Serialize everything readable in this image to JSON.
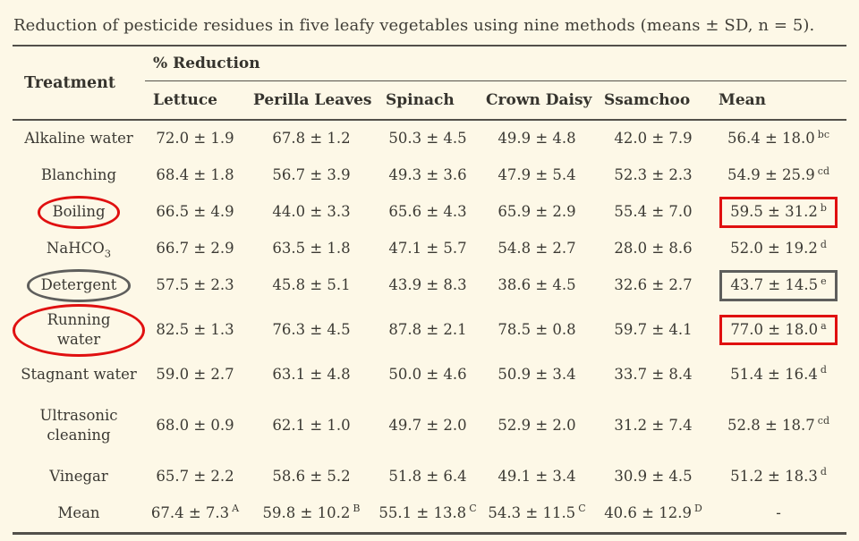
{
  "page": {
    "background_color": "#fdf8e7",
    "text_color": "#3b3933",
    "rule_color": "#52504a"
  },
  "title": "Reduction of pesticide residues in five leafy vegetables using nine methods (means ± SD, n = 5).",
  "annotation_colors": {
    "red": "#e01010",
    "gray": "#5e5e5c"
  },
  "table": {
    "treatment_header": "Treatment",
    "group_header": "% Reduction",
    "columns": [
      "Lettuce",
      "Perilla Leaves",
      "Spinach",
      "Crown Daisy",
      "Ssamchoo",
      "Mean"
    ],
    "rows": [
      {
        "treatment": "Alkaline water",
        "cells": [
          {
            "v": "72.0 ± 1.9"
          },
          {
            "v": "67.8 ± 1.2"
          },
          {
            "v": "50.3 ± 4.5"
          },
          {
            "v": "49.9 ± 4.8"
          },
          {
            "v": "42.0 ± 7.9"
          },
          {
            "v": "56.4 ± 18.0",
            "sup": "bc"
          }
        ]
      },
      {
        "treatment": "Blanching",
        "cells": [
          {
            "v": "68.4 ± 1.8"
          },
          {
            "v": "56.7 ± 3.9"
          },
          {
            "v": "49.3 ± 3.6"
          },
          {
            "v": "47.9 ± 5.4"
          },
          {
            "v": "52.3 ± 2.3"
          },
          {
            "v": "54.9 ± 25.9",
            "sup": "cd"
          }
        ]
      },
      {
        "treatment": "Boiling",
        "annotation": "red-ellipse",
        "cells": [
          {
            "v": "66.5 ± 4.9"
          },
          {
            "v": "44.0 ± 3.3"
          },
          {
            "v": "65.6 ± 4.3"
          },
          {
            "v": "65.9 ± 2.9"
          },
          {
            "v": "55.4 ± 7.0"
          },
          {
            "v": "59.5 ± 31.2",
            "sup": "b",
            "box": "red-box"
          }
        ]
      },
      {
        "treatment": "NaHCO",
        "treatment_sub": "3",
        "cells": [
          {
            "v": "66.7 ± 2.9"
          },
          {
            "v": "63.5 ± 1.8"
          },
          {
            "v": "47.1 ± 5.7"
          },
          {
            "v": "54.8 ± 2.7"
          },
          {
            "v": "28.0 ± 8.6"
          },
          {
            "v": "52.0 ± 19.2",
            "sup": "d"
          }
        ]
      },
      {
        "treatment": "Detergent",
        "annotation": "gray-ellipse",
        "cells": [
          {
            "v": "57.5 ± 2.3"
          },
          {
            "v": "45.8 ± 5.1"
          },
          {
            "v": "43.9 ± 8.3"
          },
          {
            "v": "38.6 ± 4.5"
          },
          {
            "v": "32.6 ± 2.7"
          },
          {
            "v": "43.7 ± 14.5",
            "sup": "e",
            "box": "gray-box"
          }
        ]
      },
      {
        "treatment": "Running water",
        "annotation": "red-ellipse",
        "cells": [
          {
            "v": "82.5 ± 1.3"
          },
          {
            "v": "76.3 ± 4.5"
          },
          {
            "v": "87.8 ± 2.1"
          },
          {
            "v": "78.5 ± 0.8"
          },
          {
            "v": "59.7 ± 4.1"
          },
          {
            "v": "77.0 ± 18.0",
            "sup": "a",
            "box": "red-box"
          }
        ]
      },
      {
        "treatment": "Stagnant water",
        "cells": [
          {
            "v": "59.0 ± 2.7"
          },
          {
            "v": "63.1 ± 4.8"
          },
          {
            "v": "50.0 ± 4.6"
          },
          {
            "v": "50.9 ± 3.4"
          },
          {
            "v": "33.7 ± 8.4"
          },
          {
            "v": "51.4 ± 16.4",
            "sup": "d"
          }
        ]
      },
      {
        "treatment": "Ultrasonic cleaning",
        "tall": true,
        "cells": [
          {
            "v": "68.0 ± 0.9"
          },
          {
            "v": "62.1 ± 1.0"
          },
          {
            "v": "49.7 ± 2.0"
          },
          {
            "v": "52.9 ± 2.0"
          },
          {
            "v": "31.2 ± 7.4"
          },
          {
            "v": "52.8 ± 18.7",
            "sup": "cd"
          }
        ]
      },
      {
        "treatment": "Vinegar",
        "cells": [
          {
            "v": "65.7 ± 2.2"
          },
          {
            "v": "58.6 ± 5.2"
          },
          {
            "v": "51.8 ± 6.4"
          },
          {
            "v": "49.1 ± 3.4"
          },
          {
            "v": "30.9 ± 4.5"
          },
          {
            "v": "51.2 ± 18.3",
            "sup": "d"
          }
        ]
      },
      {
        "treatment": "Mean",
        "cells": [
          {
            "v": "67.4 ± 7.3",
            "sup": "A"
          },
          {
            "v": "59.8 ± 10.2",
            "sup": "B"
          },
          {
            "v": "55.1 ± 13.8",
            "sup": "C"
          },
          {
            "v": "54.3 ± 11.5",
            "sup": "C"
          },
          {
            "v": "40.6 ± 12.9",
            "sup": "D"
          },
          {
            "v": "-"
          }
        ]
      }
    ]
  }
}
